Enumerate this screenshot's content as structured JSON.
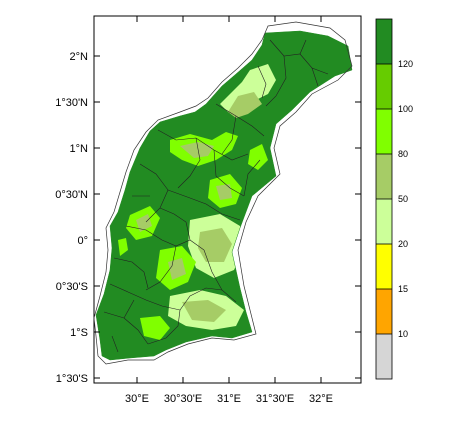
{
  "map": {
    "lat_ticks": [
      "2°N",
      "1°30'N",
      "1°N",
      "0°30'N",
      "0°",
      "0°30'S",
      "1°S",
      "1°30'S"
    ],
    "lon_ticks": [
      "30°E",
      "30°30'E",
      "31°E",
      "31°30'E",
      "32°E"
    ],
    "projection": "lat-lon",
    "region": "western Uganda (shaded gridded field with district boundaries)"
  },
  "colorbar": {
    "levels": [
      "10",
      "15",
      "20",
      "50",
      "80",
      "100",
      "120"
    ],
    "colors": [
      "#d6d6d6",
      "#ffa500",
      "#ffff00",
      "#ccff99",
      "#a6cc66",
      "#80ff00",
      "#66cc00",
      "#228b22"
    ]
  },
  "chart_data": {
    "type": "heatmap",
    "x_range": [
      "29.5°E",
      "32.3°E"
    ],
    "y_range": [
      "1°30'S",
      "2°30'N"
    ],
    "contour_levels": [
      10,
      15,
      20,
      50,
      80,
      100,
      120
    ],
    "fill_colors": [
      "#d6d6d6",
      "#ffa500",
      "#ffff00",
      "#ccff99",
      "#a6cc66",
      "#80ff00",
      "#66cc00",
      "#228b22"
    ]
  }
}
